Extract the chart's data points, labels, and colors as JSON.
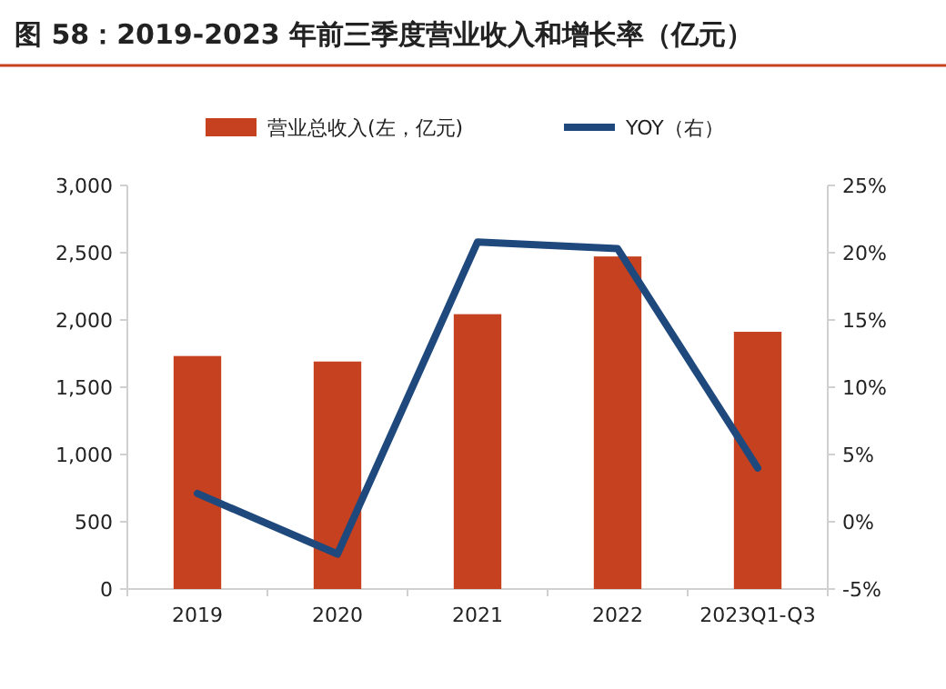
{
  "chart_data": {
    "type": "bar",
    "title": "图 58：2019-2023 年前三季度营业收入和增长率（亿元）",
    "categories": [
      "2019",
      "2020",
      "2021",
      "2022",
      "2023Q1-Q3"
    ],
    "series": [
      {
        "name": "营业总收入(左，亿元)",
        "color": "#c5411f",
        "values": [
          1732,
          1691,
          2043,
          2472,
          1912
        ]
      },
      {
        "name": "YOY（右）",
        "type": "line",
        "axis": "y2",
        "color": "#1f497d",
        "values": [
          2.1,
          -2.4,
          20.8,
          20.3,
          4.0
        ]
      }
    ],
    "ylim": [
      0,
      3000
    ],
    "yticks": [
      0,
      {
        "value": 500,
        "label": "500"
      },
      {
        "value": 1000,
        "label": "1,000"
      },
      {
        "value": 1500,
        "label": "1,500"
      },
      {
        "value": 2000,
        "label": "2,000"
      },
      {
        "value": 2500,
        "label": "2,500"
      },
      {
        "value": 3000,
        "label": "3,000"
      }
    ],
    "y2lim": [
      -5,
      25
    ],
    "y2ticks": [
      {
        "value": -5,
        "label": "-5%"
      },
      {
        "value": 0,
        "label": "0%"
      },
      {
        "value": 5,
        "label": "5%"
      },
      {
        "value": 10,
        "label": "10%"
      },
      {
        "value": 15,
        "label": "15%"
      },
      {
        "value": 20,
        "label": "20%"
      },
      {
        "value": 25,
        "label": "25%"
      }
    ],
    "legend": "top",
    "grid": false,
    "marker": "none"
  }
}
